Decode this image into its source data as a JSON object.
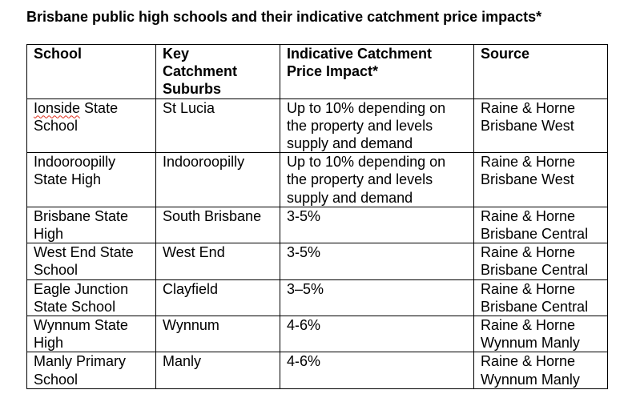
{
  "document": {
    "title": "Brisbane public high schools and their indicative catchment price impacts*"
  },
  "table": {
    "headers": {
      "school": "School",
      "suburbs": "Key\nCatchment\nSuburbs",
      "impact": "Indicative Catchment\nPrice Impact*",
      "source": "Source"
    },
    "rows": [
      {
        "school_first_word": "Ionside",
        "school_rest": " State\nSchool",
        "suburbs": "St Lucia",
        "impact": "Up to 10% depending on\nthe property and levels\nsupply and demand",
        "source": "Raine & Horne\nBrisbane West"
      },
      {
        "school": "Indooroopilly\nState High",
        "suburbs": "Indooroopilly",
        "impact": "Up to 10% depending on\nthe property and levels\nsupply and demand",
        "source": "Raine & Horne\nBrisbane West"
      },
      {
        "school": "Brisbane State\nHigh",
        "suburbs": "South Brisbane",
        "impact": "3-5%",
        "source": "Raine & Horne\nBrisbane Central"
      },
      {
        "school": "West End State\nSchool",
        "suburbs": "West End",
        "impact": "3-5%",
        "source": "Raine & Horne\nBrisbane Central"
      },
      {
        "school": "Eagle Junction\nState School",
        "suburbs": "Clayfield",
        "impact": "3–5%",
        "source": "Raine & Horne\nBrisbane Central"
      },
      {
        "school": "Wynnum State\nHigh",
        "suburbs": "Wynnum",
        "impact": "4-6%",
        "source": "Raine & Horne\nWynnum Manly"
      },
      {
        "school": "Manly Primary\nSchool",
        "suburbs": "Manly",
        "impact": "4-6%",
        "source": "Raine & Horne\nWynnum Manly"
      }
    ]
  }
}
